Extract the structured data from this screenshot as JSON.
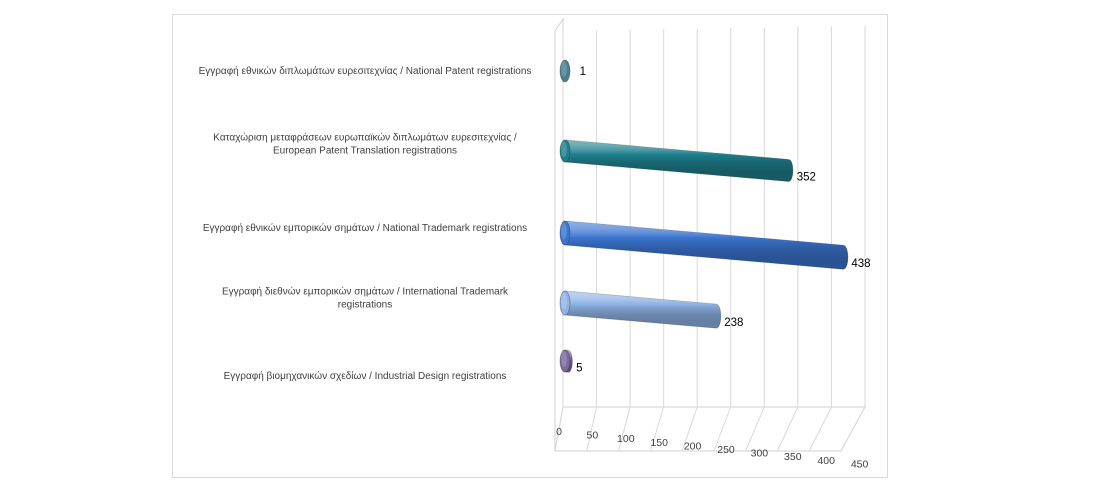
{
  "chart_data": {
    "type": "bar",
    "orientation": "horizontal",
    "style": "3d-cylinder",
    "title": "",
    "xlabel": "",
    "ylabel": "",
    "xlim": [
      0,
      450
    ],
    "ticks": [
      0,
      50,
      100,
      150,
      200,
      250,
      300,
      350,
      400,
      450
    ],
    "grid": true,
    "legend": "none",
    "categories": [
      [
        "Εγγραφή εθνικών διπλωμάτων ευρεσιτεχνίας / National Patent registrations"
      ],
      [
        "Καταχώριση μεταφράσεων ευρωπαϊκών διπλωμάτων ευρεσιτεχνίας /",
        "European Patent Translation registrations"
      ],
      [
        "Εγγραφή εθνικών εμπορικών σημάτων / National Trademark registrations"
      ],
      [
        "Εγγραφή διεθνών εμπορικών σημάτων / International Trademark",
        "registrations"
      ],
      [
        "Εγγραφή βιομηχανικών σχεδίων / Industrial Design registrations"
      ]
    ],
    "values": [
      1,
      352,
      438,
      238,
      5
    ],
    "colors": [
      "#4a7d8e",
      "#1e7f8c",
      "#3a74cf",
      "#8fb3e6",
      "#7a6a9e"
    ]
  }
}
